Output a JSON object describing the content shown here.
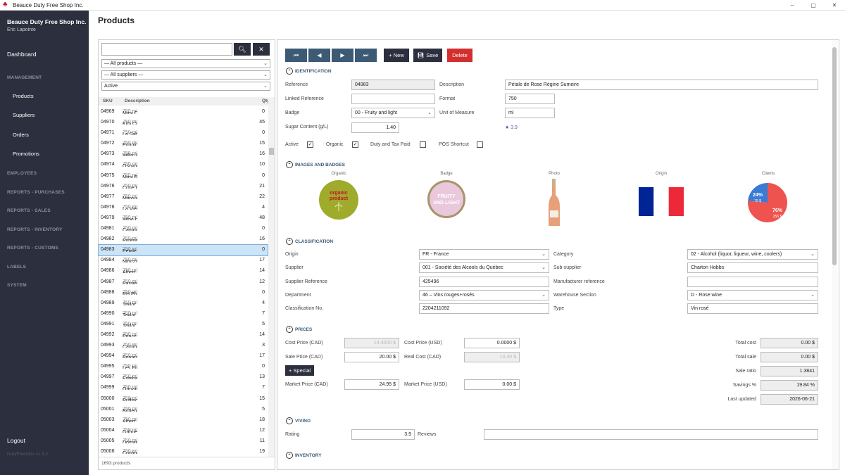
{
  "window": {
    "title": "Beauce Duty Free Shop Inc.",
    "min": "–",
    "max": "▢",
    "close": "✕"
  },
  "sidebar": {
    "company": "Beauce Duty Free Shop Inc.",
    "user": "Eric Lapointe",
    "dashboard": "Dashboard",
    "management": "MANAGEMENT",
    "products": "Products",
    "suppliers": "Suppliers",
    "orders": "Orders",
    "promotions": "Promotions",
    "employees": "EMPLOYEES",
    "reports_purchases": "REPORTS - PURCHASES",
    "reports_sales": "REPORTS - SALES",
    "reports_inventory": "REPORTS - INVENTORY",
    "reports_customs": "REPORTS - CUSTOMS",
    "labels": "LABELS",
    "system": "SYSTEM",
    "logout": "Logout",
    "version": "DutyFreeOps v1.3.2"
  },
  "page": {
    "title": "Products"
  },
  "list": {
    "search_placeholder": "",
    "filter_products": "— All products —",
    "filter_suppliers": "— All suppliers —",
    "filter_status": "Active",
    "col_sku": "SKU",
    "col_desc": "Description",
    "col_qty": "Qty",
    "footer": "1693 products",
    "rows": [
      {
        "sku": "04969",
        "name": "Masi Campofiorin Rosso del Veronese",
        "size": "750 ml",
        "qty": "0"
      },
      {
        "sku": "04970",
        "name": "Kim Crawford Pinot Grigio",
        "size": "750 ml",
        "qty": "45"
      },
      {
        "sku": "04971",
        "name": "La Sablette Muscadet",
        "size": "750 ml",
        "qty": "0"
      },
      {
        "sku": "04972",
        "name": "Poggiotondo Chianti",
        "size": "750 ml",
        "qty": "15"
      },
      {
        "sku": "04973",
        "name": "Willm Réserve Pinot Blanc",
        "size": "750 ml",
        "qty": "16"
      },
      {
        "sku": "04974",
        "name": "Osoyoos Larose Le Grand Vin",
        "size": "750 ml",
        "qty": "10"
      },
      {
        "sku": "04975",
        "name": "Masi Bonacosta Valpolicella",
        "size": "750 ml",
        "qty": "0"
      },
      {
        "sku": "04976",
        "name": "Cune Gran Reserva",
        "size": "750 ml",
        "qty": "21"
      },
      {
        "sku": "04977",
        "name": "Marqués De Riscal Reserva",
        "size": "750 ml",
        "qty": "22"
      },
      {
        "sku": "04978",
        "name": "La Vieille Ferme",
        "size": "750 ml",
        "qty": "4"
      },
      {
        "sku": "04979",
        "name": "Wine by Nature Sauvignon Blanc",
        "size": "750 ml",
        "qty": "48"
      },
      {
        "sku": "04981",
        "name": "Campo Viejo Rioja Tempranillo",
        "size": "750 ml",
        "qty": "0"
      },
      {
        "sku": "04982",
        "name": "Pyrène Cuvée Marine",
        "size": "750 ml",
        "qty": "16"
      },
      {
        "sku": "04983",
        "name": "Pétale de Rose Régine Sumeire",
        "size": "750 ml",
        "qty": "0"
      },
      {
        "sku": "04984",
        "name": "Nipozzano Riserva Chianti Rufina",
        "size": "750 ml",
        "qty": "17"
      },
      {
        "sku": "04986",
        "name": "Albert Bichot Pinot Noir Vieilles Vignes",
        "size": "750 ml",
        "qty": "14"
      },
      {
        "sku": "04987",
        "name": "Parajes del Valle Monastrell",
        "size": "750 ml",
        "qty": "12"
      },
      {
        "sku": "04988",
        "name": "RH Phillips Cabernet-Sauvignon",
        "size": "750 ml",
        "qty": "0"
      },
      {
        "sku": "04989",
        "name": "Taylor Fladgate 20 ans Porto",
        "size": "750 ml",
        "qty": "4"
      },
      {
        "sku": "04990",
        "name": "Taylor Fladgate LBV Porto",
        "size": "750 ml",
        "qty": "7"
      },
      {
        "sku": "04991",
        "name": "Taylor Fladgate 10 ans Porto",
        "size": "750 ml",
        "qty": "5"
      },
      {
        "sku": "04992",
        "name": "Prince Philippe Bourgogne Aligoté",
        "size": "750 ml",
        "qty": "14"
      },
      {
        "sku": "04993",
        "name": "Camino del Puerto Verdejo",
        "size": "750 ml",
        "qty": "3"
      },
      {
        "sku": "04994",
        "name": "Borges Quinta de Simaens Vinho Verde",
        "size": "750 ml",
        "qty": "17"
      },
      {
        "sku": "04995",
        "name": "Les Fossiles Bourgogne Aligoté",
        "size": "750 ml",
        "qty": "0"
      },
      {
        "sku": "04997",
        "name": "Esteban Martin Carinena Reserva",
        "size": "750 ml",
        "qty": "13"
      },
      {
        "sku": "04999",
        "name": "Ormarine Picpoul de Pinet",
        "size": "750 ml",
        "qty": "7"
      },
      {
        "sku": "05000",
        "name": "Ruffino Prosecco Rosé",
        "size": "750 ml",
        "qty": "15"
      },
      {
        "sku": "05001",
        "name": "Bottega Petalo Il Vino Dell'Amore",
        "size": "750 ml",
        "qty": "5"
      },
      {
        "sku": "05003",
        "name": "Albert Bichot Bourgogne Aligoté",
        "size": "750 ml",
        "qty": "18"
      },
      {
        "sku": "05004",
        "name": "Gabriel Meffre Côtes du Rhône",
        "size": "750 ml",
        "qty": "12"
      },
      {
        "sku": "05005",
        "name": "Domaine du Tariquet Sauvignon Blanc",
        "size": "750 ml",
        "qty": "11"
      },
      {
        "sku": "05006",
        "name": "Contino Reserva Rioja",
        "size": "750 ml",
        "qty": "19"
      }
    ]
  },
  "toolbar": {
    "new": "+ New",
    "save": "Save",
    "delete": "Delete"
  },
  "identification": {
    "section": "IDENTIFICATION",
    "reference_label": "Reference",
    "reference": "04983",
    "description_label": "Description",
    "description": "Pétale de Rose Régine Sumeire",
    "linked_label": "Linked Reference",
    "linked": "",
    "format_label": "Format",
    "format": "750",
    "badge_label": "Badge",
    "badge": "00 - Fruity and light",
    "uom_label": "Unit of Measure",
    "uom": "ml",
    "sugar_label": "Sugar Content (g/L)",
    "sugar": "1.40",
    "rating_star": "★ 3.9",
    "active_label": "Active",
    "organic_label": "Organic",
    "duty_label": "Duty and Tax Paid",
    "pos_label": "POS Shortcut",
    "check_mark": "✓"
  },
  "images": {
    "section": "IMAGES AND BADGES",
    "organic_cap": "Organic",
    "badge_cap": "Badge",
    "photo_cap": "Photo",
    "origin_cap": "Origin",
    "clients_cap": "Clients",
    "organic_line1": "organic",
    "organic_line2": "product",
    "badge_line1": "FRUITY",
    "badge_line2": "AND LIGHT",
    "pie_a_pct": "24%",
    "pie_a_val": "79 $",
    "pie_b_pct": "76%",
    "pie_b_val": "256 $"
  },
  "chart_data": {
    "type": "pie",
    "slices": [
      {
        "label": "24%",
        "value": 79,
        "color": "#3a7bd5"
      },
      {
        "label": "76%",
        "value": 256,
        "color": "#ef5350"
      }
    ]
  },
  "classification": {
    "section": "CLASSIFICATION",
    "origin_label": "Origin",
    "origin": "FR - France",
    "category_label": "Category",
    "category": "02 - Alcohol (liquor, liqueur, wine, coolers)",
    "supplier_label": "Supplier",
    "supplier": "001 - Société des Alcools du Québec",
    "subsupplier_label": "Sub-supplier",
    "subsupplier": "Charton Hobbs",
    "supref_label": "Supplier Reference",
    "supref": "425496",
    "manref_label": "Manufacturer reference",
    "manref": "",
    "dept_label": "Department",
    "dept": "46 – Vins rouges+rosés",
    "warehouse_label": "Warehouse Section",
    "warehouse": "D - Rose wine",
    "classno_label": "Classification No.",
    "classno": "2204211092",
    "type_label": "Type",
    "type": "Vin rosé"
  },
  "prices": {
    "section": "PRICES",
    "cost_cad_label": "Cost Price (CAD)",
    "cost_cad": "14.4000 $",
    "cost_usd_label": "Cost Price (USD)",
    "cost_usd": "0.0000 $",
    "sale_cad_label": "Sale Price (CAD)",
    "sale_cad": "20.00 $",
    "real_cost_label": "Real Cost (CAD)",
    "real_cost": "14.40 $",
    "special": "+ Special",
    "market_cad_label": "Market Price (CAD)",
    "market_cad": "24.95 $",
    "market_usd_label": "Market Price (USD)",
    "market_usd": "0.00 $",
    "total_cost_label": "Total cost",
    "total_cost": "0.00 $",
    "total_sale_label": "Total sale",
    "total_sale": "0.00 $",
    "sale_ratio_label": "Sale ratio",
    "sale_ratio": "1.3841",
    "savings_label": "Savings %",
    "savings": "19.84 %",
    "updated_label": "Last updated",
    "updated": "2026-06-21"
  },
  "vivino": {
    "section": "VIVINO",
    "rating_label": "Rating",
    "rating": "3.9",
    "reviews_label": "Reviews",
    "reviews": ""
  },
  "inventory": {
    "section": "INVENTORY"
  },
  "colors": {
    "sidebar": "#2b2f3e",
    "nav": "#3d5a75",
    "delete": "#d32f2f",
    "accent": "#3d5a75"
  }
}
